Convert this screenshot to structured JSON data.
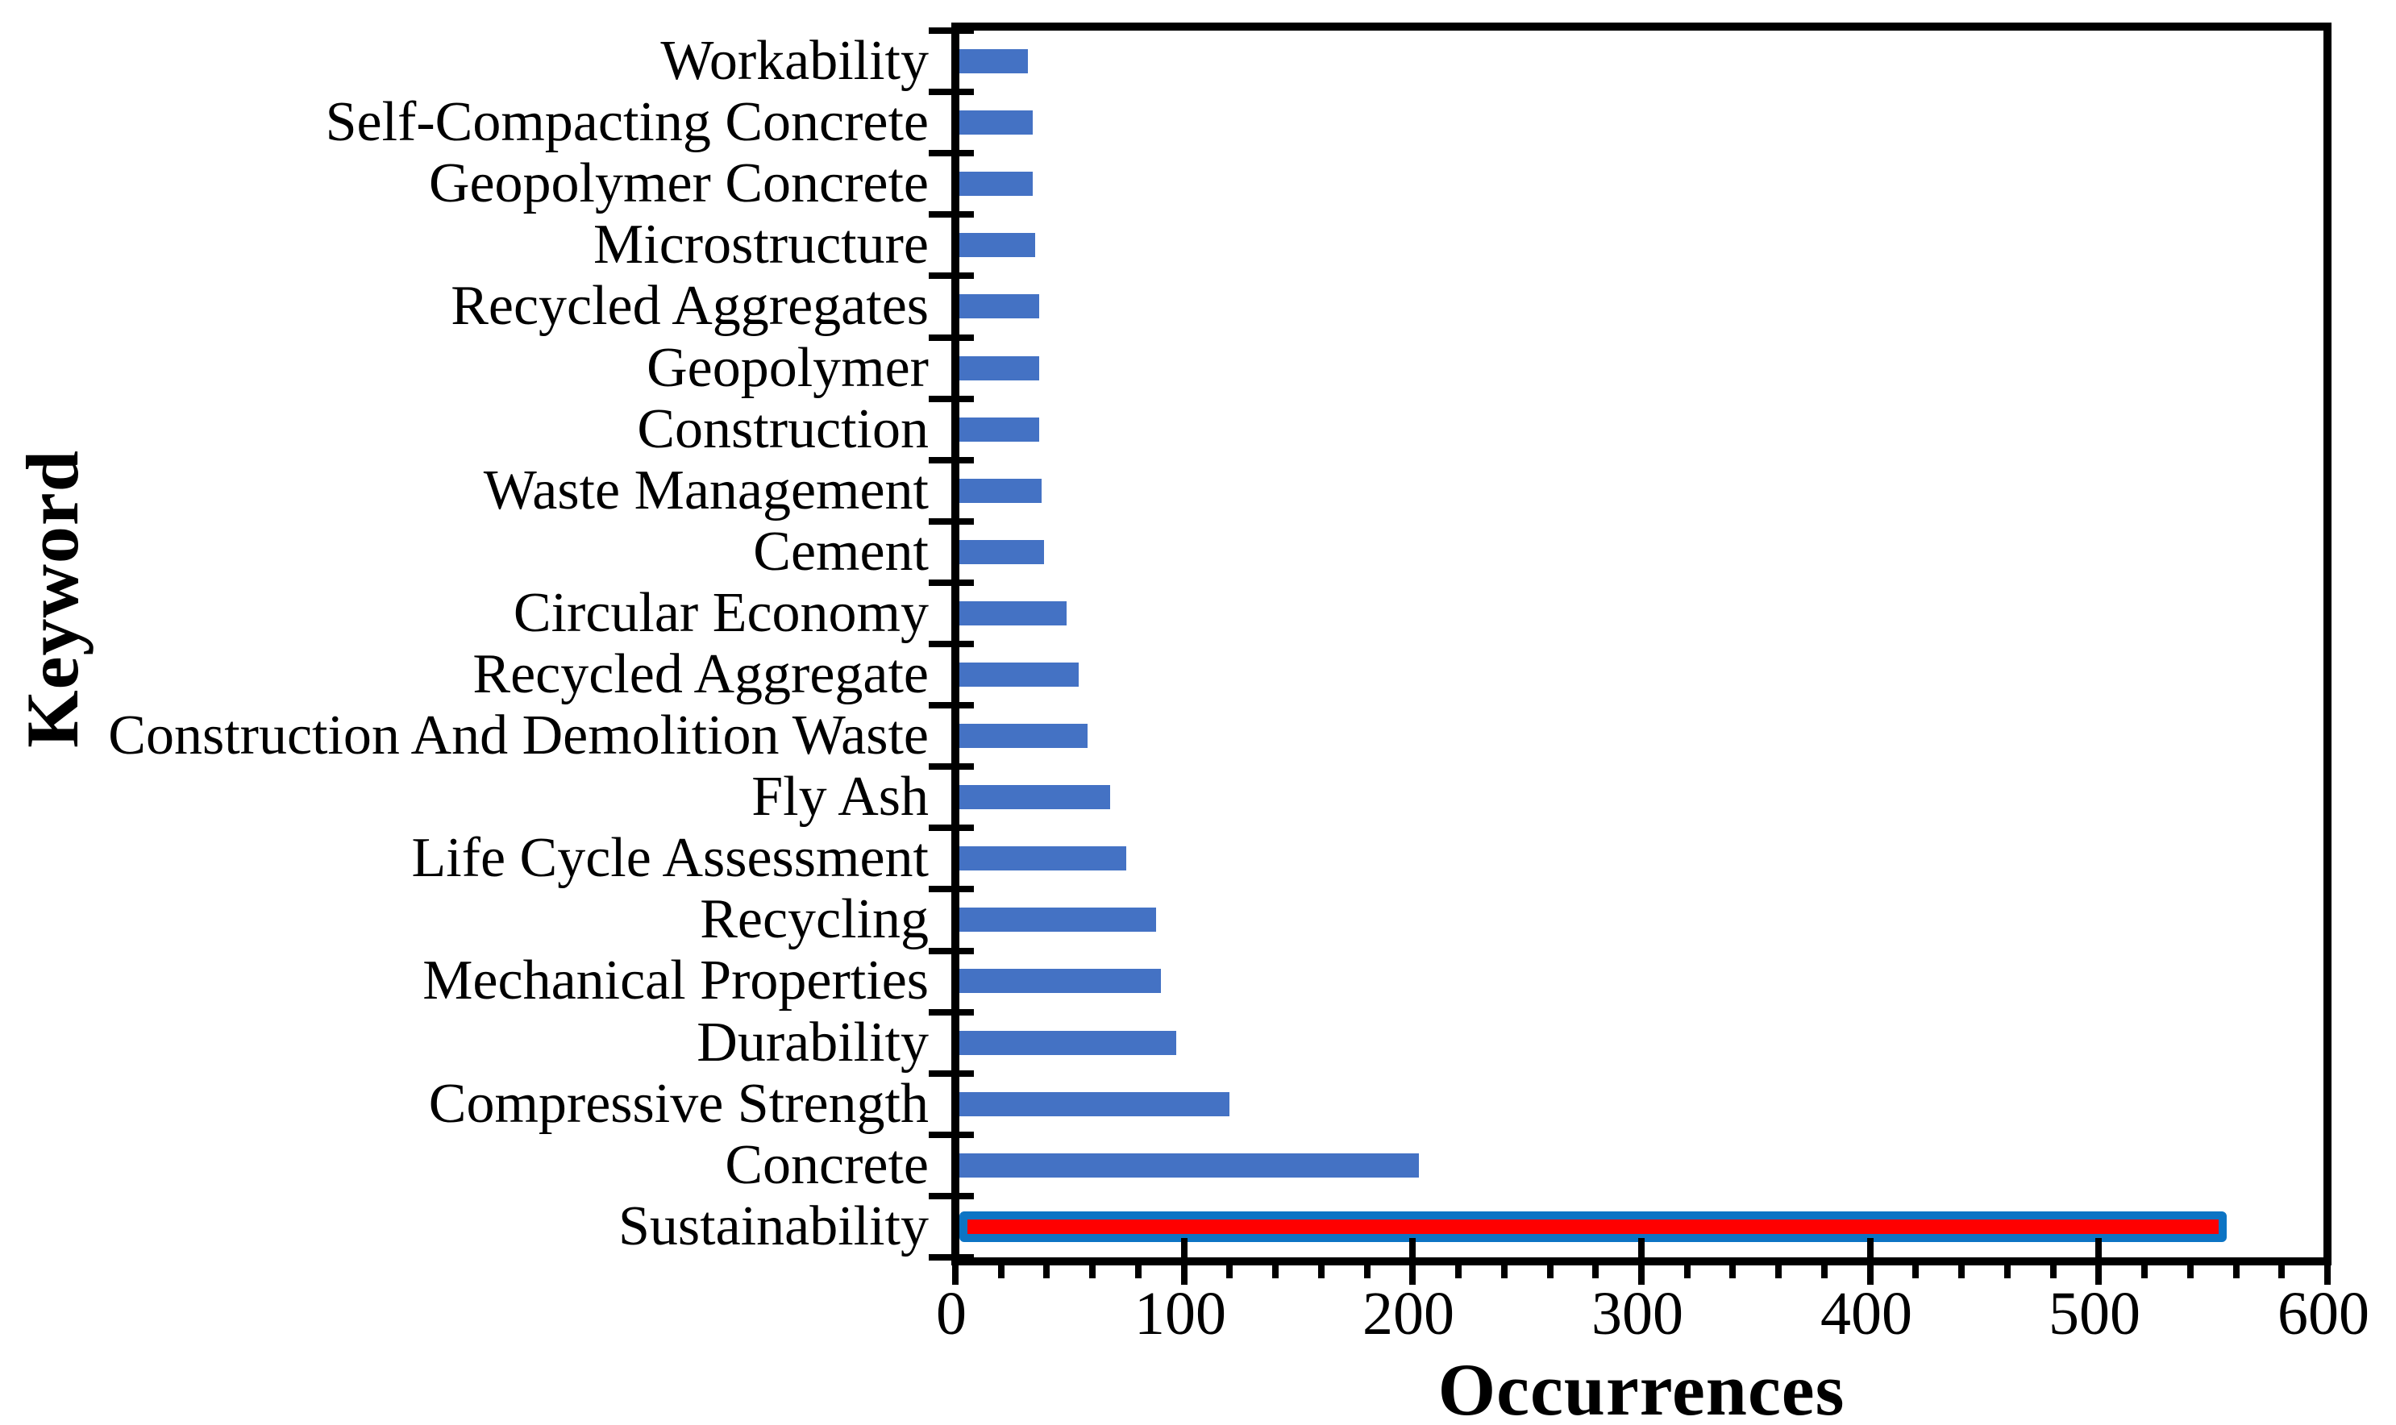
{
  "chart_data": {
    "type": "bar",
    "orientation": "horizontal",
    "xlabel": "Occurrences",
    "ylabel": "Keyword",
    "xlim": [
      0,
      600
    ],
    "x_major_ticks": [
      0,
      100,
      200,
      300,
      400,
      500,
      600
    ],
    "x_minor_tick_step": 20,
    "grid": "off",
    "legend": "none",
    "bar_color": "#4472C4",
    "axis_color": "#000000",
    "categories": [
      "Workability",
      "Self-Compacting Concrete",
      "Geopolymer Concrete",
      "Microstructure",
      "Recycled Aggregates",
      "Geopolymer",
      "Construction",
      "Waste Management",
      "Cement",
      "Circular Economy",
      "Recycled Aggregate",
      "Construction And Demolition Waste",
      "Fly Ash",
      "Life Cycle Assessment",
      "Recycling",
      "Mechanical Properties",
      "Durability",
      "Compressive Strength",
      "Concrete",
      "Sustainability"
    ],
    "values": [
      30,
      32,
      32,
      33,
      35,
      35,
      35,
      36,
      37,
      47,
      52,
      56,
      66,
      73,
      86,
      88,
      95,
      118,
      201,
      554
    ],
    "highlight": {
      "category": "Sustainability",
      "fill_color": "#FF0000",
      "border_color": "#0C74C4"
    }
  }
}
